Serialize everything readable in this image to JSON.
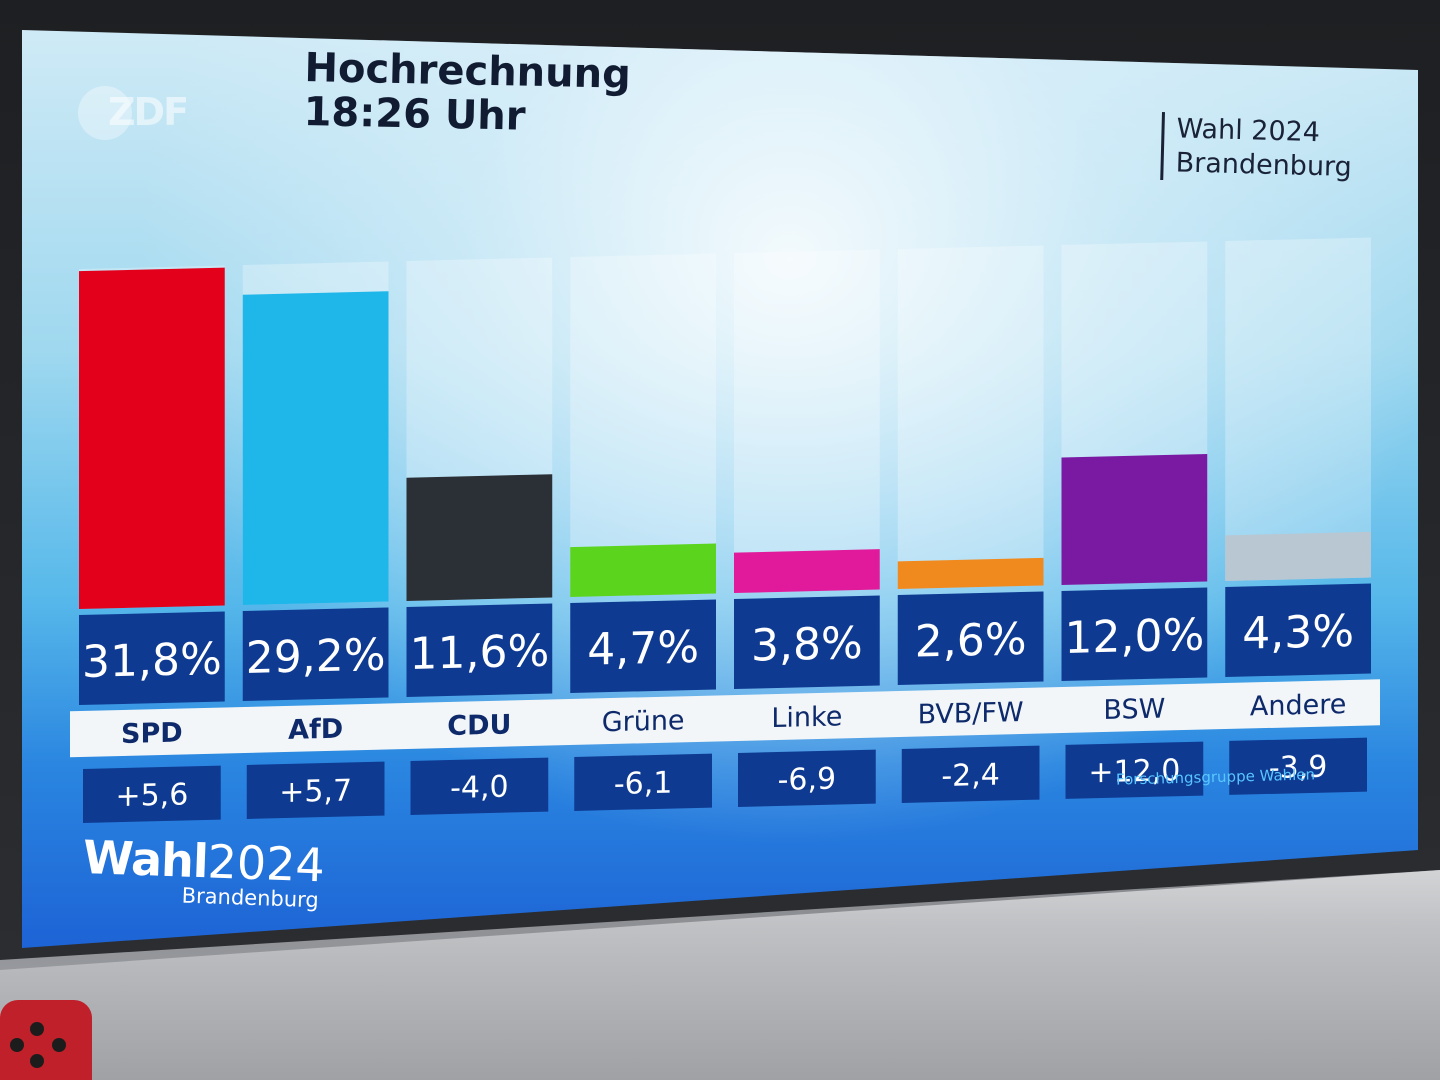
{
  "broadcaster": "ZDF",
  "header": {
    "title_line1": "Hochrechnung",
    "title_line2": "18:26 Uhr"
  },
  "badge": {
    "line1": "Wahl 2024",
    "line2": "Brandenburg"
  },
  "footer": {
    "brand_bold": "Wahl",
    "brand_year": "2024",
    "brand_sub": "Brandenburg",
    "source": "Forschungsgruppe Wahlen"
  },
  "chart_data": {
    "type": "bar",
    "title": "Hochrechnung",
    "subtitle": "18:26 Uhr",
    "categories": [
      "SPD",
      "AfD",
      "CDU",
      "Grüne",
      "Linke",
      "BVB/FW",
      "BSW",
      "Andere"
    ],
    "values": [
      31.8,
      29.2,
      11.6,
      4.7,
      3.8,
      2.6,
      12.0,
      4.3
    ],
    "value_labels": [
      "31,8%",
      "29,2%",
      "11,6%",
      "4,7%",
      "3,8%",
      "2,6%",
      "12,0%",
      "4,3%"
    ],
    "changes": [
      5.6,
      5.7,
      -4.0,
      -6.1,
      -6.9,
      -2.4,
      12.0,
      -3.9
    ],
    "change_labels": [
      "+5,6",
      "+5,7",
      "-4,0",
      "-6,1",
      "-6,9",
      "-2,4",
      "+12,0",
      "-3,9"
    ],
    "colors": [
      "#e3001b",
      "#1fb6ea",
      "#2b2f36",
      "#5ad41c",
      "#e01a9b",
      "#f08a1f",
      "#7a1aa3",
      "#b9c7d3"
    ],
    "ylim": [
      0,
      32
    ],
    "grid": false,
    "legend": "none"
  }
}
